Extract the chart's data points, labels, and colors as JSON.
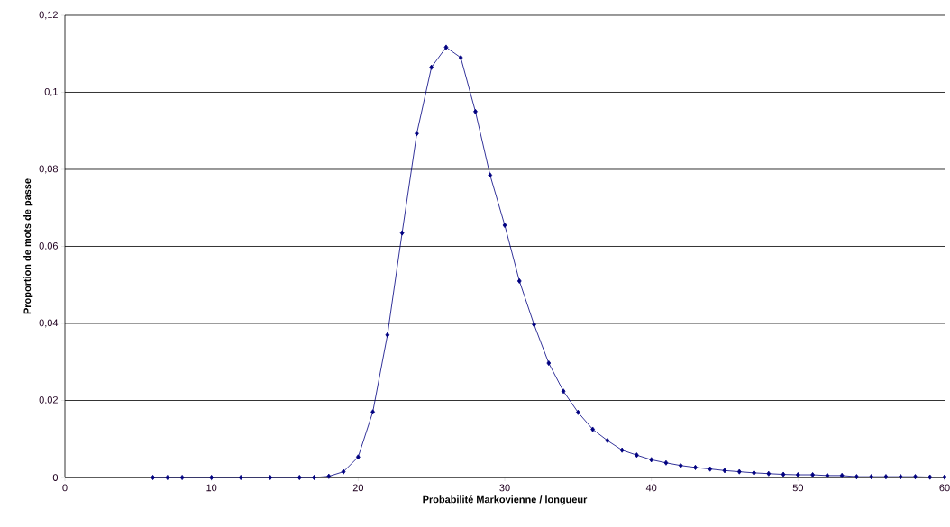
{
  "chart_data": {
    "type": "line",
    "xlabel": "Probabilité Markovienne / longueur",
    "ylabel": "Proportion de mots de passe",
    "x": [
      6,
      7,
      8,
      10,
      12,
      14,
      16,
      17,
      18,
      19,
      20,
      21,
      22,
      23,
      24,
      25,
      26,
      27,
      28,
      29,
      30,
      31,
      32,
      33,
      34,
      35,
      36,
      37,
      38,
      39,
      40,
      41,
      42,
      43,
      44,
      45,
      46,
      47,
      48,
      49,
      50,
      51,
      52,
      53,
      54,
      55,
      56,
      57,
      58,
      59,
      60
    ],
    "series": [
      {
        "color": "#000080",
        "values": [
          0,
          0,
          0,
          0,
          0,
          0,
          0,
          0,
          0.0003,
          0.0015,
          0.0053,
          0.017,
          0.037,
          0.0635,
          0.0893,
          0.1065,
          0.1117,
          0.109,
          0.095,
          0.0785,
          0.0655,
          0.051,
          0.0397,
          0.0297,
          0.0224,
          0.0169,
          0.0125,
          0.0096,
          0.0071,
          0.0058,
          0.0046,
          0.0038,
          0.0031,
          0.0026,
          0.0022,
          0.0018,
          0.0015,
          0.0012,
          0.001,
          0.0008,
          0.0007,
          0.0007,
          0.0005,
          0.0005,
          0.0002,
          0.0002,
          0.0002,
          0.0002,
          0.0002,
          0.0001,
          0.0001
        ]
      }
    ],
    "xlim": [
      0,
      60
    ],
    "xticks": [
      0,
      10,
      20,
      30,
      40,
      50,
      60
    ],
    "ylim": [
      0,
      0.12
    ],
    "yticks": [
      {
        "value": 0,
        "label": "0"
      },
      {
        "value": 0.02,
        "label": "0,02"
      },
      {
        "value": 0.04,
        "label": "0,04"
      },
      {
        "value": 0.06,
        "label": "0,06"
      },
      {
        "value": 0.08,
        "label": "0,08"
      },
      {
        "value": 0.1,
        "label": "0,1"
      },
      {
        "value": 0.12,
        "label": "0,12"
      }
    ],
    "grid": "y",
    "marker": "diamond",
    "line_style": "solid"
  }
}
